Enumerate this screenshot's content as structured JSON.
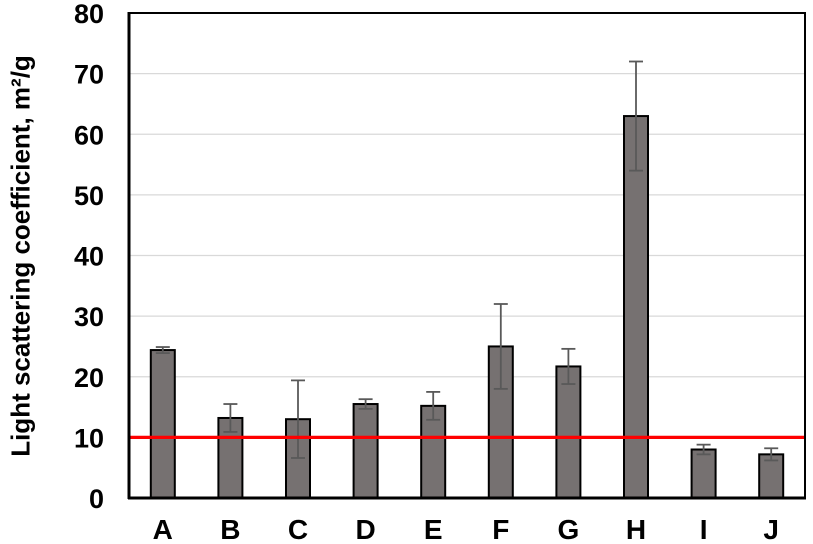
{
  "chart_data": {
    "type": "bar",
    "title": "",
    "xlabel": "",
    "ylabel": "Light scattering coefficient, m²/g",
    "categories": [
      "A",
      "B",
      "C",
      "D",
      "E",
      "F",
      "G",
      "H",
      "I",
      "J"
    ],
    "values": [
      24.4,
      13.2,
      13.0,
      15.5,
      15.2,
      25.0,
      21.7,
      63.0,
      8.0,
      7.2
    ],
    "error_bars": [
      0.5,
      2.3,
      6.4,
      0.8,
      2.3,
      7.0,
      2.9,
      9.0,
      0.8,
      1.0
    ],
    "ylim": [
      0,
      80
    ],
    "ytick_step": 10,
    "ytick_labels": [
      "0",
      "10",
      "20",
      "30",
      "40",
      "50",
      "60",
      "70",
      "80"
    ],
    "grid": true,
    "legend": "none",
    "reference_line": {
      "value": 10,
      "color": "#FF0000"
    },
    "colors": {
      "bar_fill": "#767171",
      "bar_border": "#000000",
      "error_bar": "#595959",
      "gridline": "#D9D9D9",
      "axis": "#000000",
      "background": "#FFFFFF",
      "text": "#000000"
    }
  }
}
